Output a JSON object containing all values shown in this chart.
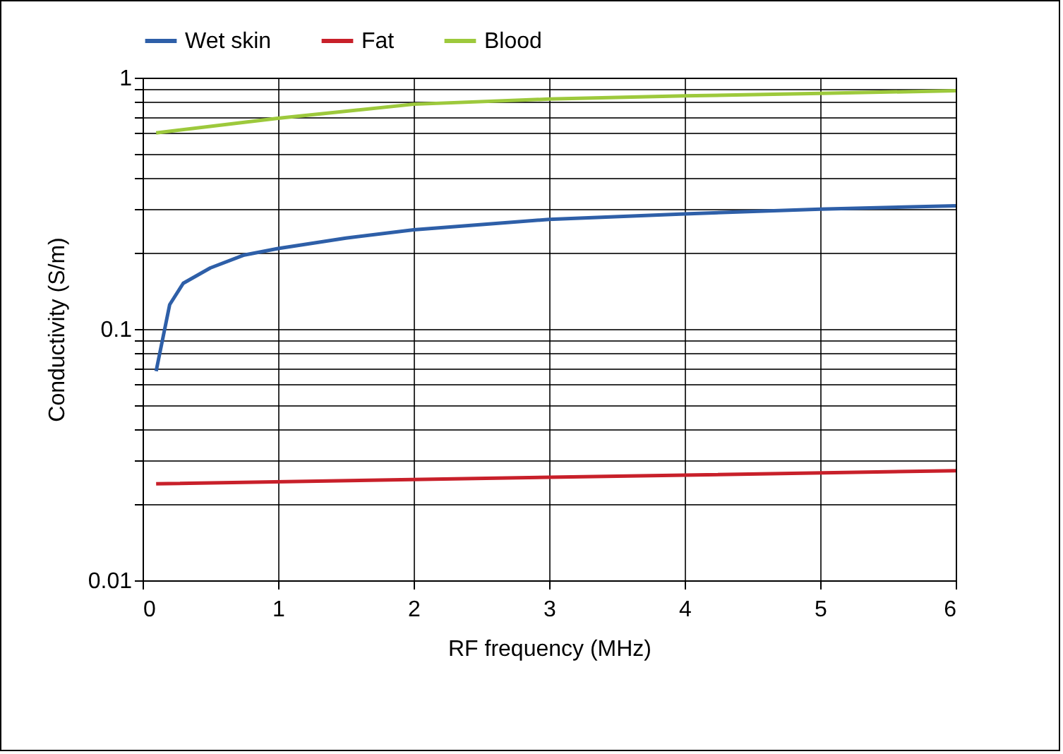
{
  "chart_data": {
    "type": "line",
    "xlabel": "RF frequency (MHz)",
    "ylabel": "Conductivity (S/m)",
    "log": "y",
    "grid": true,
    "legend": "top",
    "marker": "none",
    "line_style": "solid",
    "xlim": [
      0,
      6
    ],
    "xticks": [
      0,
      1,
      2,
      3,
      4,
      5,
      6
    ],
    "ylim": [
      0.01,
      1
    ],
    "yticks": [
      0.01,
      {
        "value": 0.02,
        "label": null
      },
      {
        "value": 0.03,
        "label": null
      },
      {
        "value": 0.04,
        "label": null
      },
      {
        "value": 0.05,
        "label": null
      },
      {
        "value": 0.06,
        "label": null
      },
      {
        "value": 0.07,
        "label": null
      },
      {
        "value": 0.08,
        "label": null
      },
      {
        "value": 0.09,
        "label": null
      },
      0.1,
      {
        "value": 0.2,
        "label": null
      },
      {
        "value": 0.3,
        "label": null
      },
      {
        "value": 0.4,
        "label": null
      },
      {
        "value": 0.5,
        "label": null
      },
      {
        "value": 0.6,
        "label": null
      },
      {
        "value": 0.7,
        "label": null
      },
      {
        "value": 0.8,
        "label": null
      },
      {
        "value": 0.9,
        "label": null
      },
      1
    ],
    "series": [
      {
        "name": "Wet skin",
        "color": "#2e5fa8",
        "x": [
          0.1,
          0.2,
          0.3,
          0.5,
          0.75,
          1,
          1.5,
          2,
          3,
          4,
          5,
          6
        ],
        "values": [
          0.068,
          0.125,
          0.152,
          0.175,
          0.197,
          0.209,
          0.23,
          0.248,
          0.273,
          0.287,
          0.3,
          0.309
        ]
      },
      {
        "name": "Fat",
        "color": "#c8202a",
        "x": [
          0.1,
          3,
          6
        ],
        "values": [
          0.0242,
          0.0257,
          0.0273
        ]
      },
      {
        "name": "Blood",
        "color": "#9dc93c",
        "x": [
          0.1,
          1,
          2,
          3,
          4,
          5,
          6
        ],
        "values": [
          0.603,
          0.689,
          0.784,
          0.822,
          0.846,
          0.866,
          0.887
        ]
      }
    ]
  }
}
